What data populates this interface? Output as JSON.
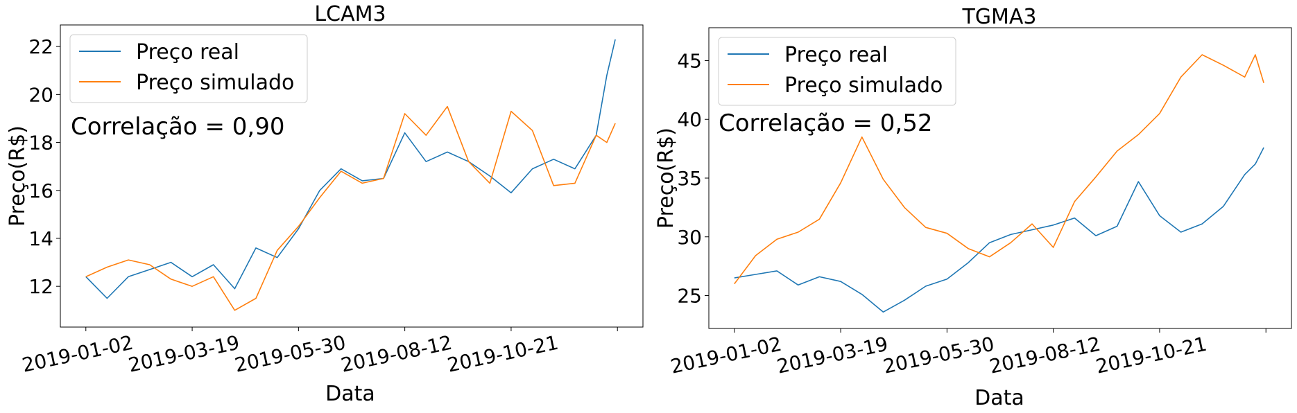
{
  "chart_data": [
    {
      "type": "line",
      "title": "LCAM3",
      "xlabel": "Data",
      "ylabel": "Preço(R$)",
      "annotation": "Correlação = 0,90",
      "legend": {
        "placement": "top-left",
        "entries": [
          "Preço real",
          "Preço simulado"
        ]
      },
      "grid": false,
      "x_tick_labels": [
        "2019-01-02",
        "2019-03-19",
        "2019-05-30",
        "2019-08-12",
        "2019-10-21"
      ],
      "x_tick_index": [
        0,
        50,
        100,
        150,
        200
      ],
      "x_range": [
        -12,
        262
      ],
      "y_ticks": [
        12,
        14,
        16,
        18,
        20,
        22
      ],
      "ylim": [
        10.3,
        22.9
      ],
      "x": [
        0,
        10,
        20,
        30,
        40,
        50,
        60,
        70,
        80,
        90,
        100,
        110,
        120,
        130,
        140,
        150,
        160,
        170,
        180,
        190,
        200,
        210,
        220,
        230,
        240,
        245,
        249
      ],
      "series": [
        {
          "name": "Preço real",
          "color": "#1f77b4",
          "values": [
            12.4,
            11.5,
            12.4,
            12.7,
            13.0,
            12.4,
            12.9,
            11.9,
            13.6,
            13.2,
            14.4,
            16.0,
            16.9,
            16.4,
            16.5,
            18.4,
            17.2,
            17.6,
            17.2,
            16.6,
            15.9,
            16.9,
            17.3,
            16.9,
            18.3,
            20.8,
            22.3
          ]
        },
        {
          "name": "Preço simulado",
          "color": "#ff7f0e",
          "values": [
            12.4,
            12.8,
            13.1,
            12.9,
            12.3,
            12.0,
            12.4,
            11.0,
            11.5,
            13.5,
            14.5,
            15.7,
            16.8,
            16.3,
            16.5,
            19.2,
            18.3,
            19.5,
            17.2,
            16.3,
            19.3,
            18.5,
            16.2,
            16.3,
            18.3,
            18.0,
            18.8
          ]
        }
      ]
    },
    {
      "type": "line",
      "title": "TGMA3",
      "xlabel": "Data",
      "ylabel": "Preço(R$)",
      "annotation": "Correlação = 0,52",
      "legend": {
        "placement": "top-left",
        "entries": [
          "Preço real",
          "Preço simulado"
        ]
      },
      "grid": false,
      "x_tick_labels": [
        "2019-01-02",
        "2019-03-19",
        "2019-05-30",
        "2019-08-12",
        "2019-10-21"
      ],
      "x_tick_index": [
        0,
        50,
        100,
        150,
        200
      ],
      "x_range": [
        -12,
        262
      ],
      "y_ticks": [
        25,
        30,
        35,
        40,
        45
      ],
      "ylim": [
        22.2,
        47.8
      ],
      "x": [
        0,
        10,
        20,
        30,
        40,
        50,
        60,
        70,
        80,
        90,
        100,
        110,
        120,
        130,
        140,
        150,
        160,
        170,
        180,
        190,
        200,
        210,
        220,
        230,
        240,
        245,
        249
      ],
      "series": [
        {
          "name": "Preço real",
          "color": "#1f77b4",
          "values": [
            26.5,
            26.8,
            27.1,
            25.9,
            26.6,
            26.2,
            25.1,
            23.6,
            24.6,
            25.8,
            26.4,
            27.8,
            29.5,
            30.2,
            30.6,
            31.0,
            31.6,
            30.1,
            30.9,
            34.7,
            31.8,
            30.4,
            31.1,
            32.6,
            35.3,
            36.2,
            37.6
          ]
        },
        {
          "name": "Preço simulado",
          "color": "#ff7f0e",
          "values": [
            26.0,
            28.4,
            29.8,
            30.4,
            31.5,
            34.6,
            38.5,
            34.9,
            32.5,
            30.8,
            30.3,
            29.0,
            28.3,
            29.5,
            31.1,
            29.1,
            33.0,
            35.1,
            37.3,
            38.7,
            40.5,
            43.6,
            45.5,
            44.6,
            43.6,
            45.5,
            43.1
          ]
        }
      ]
    }
  ]
}
